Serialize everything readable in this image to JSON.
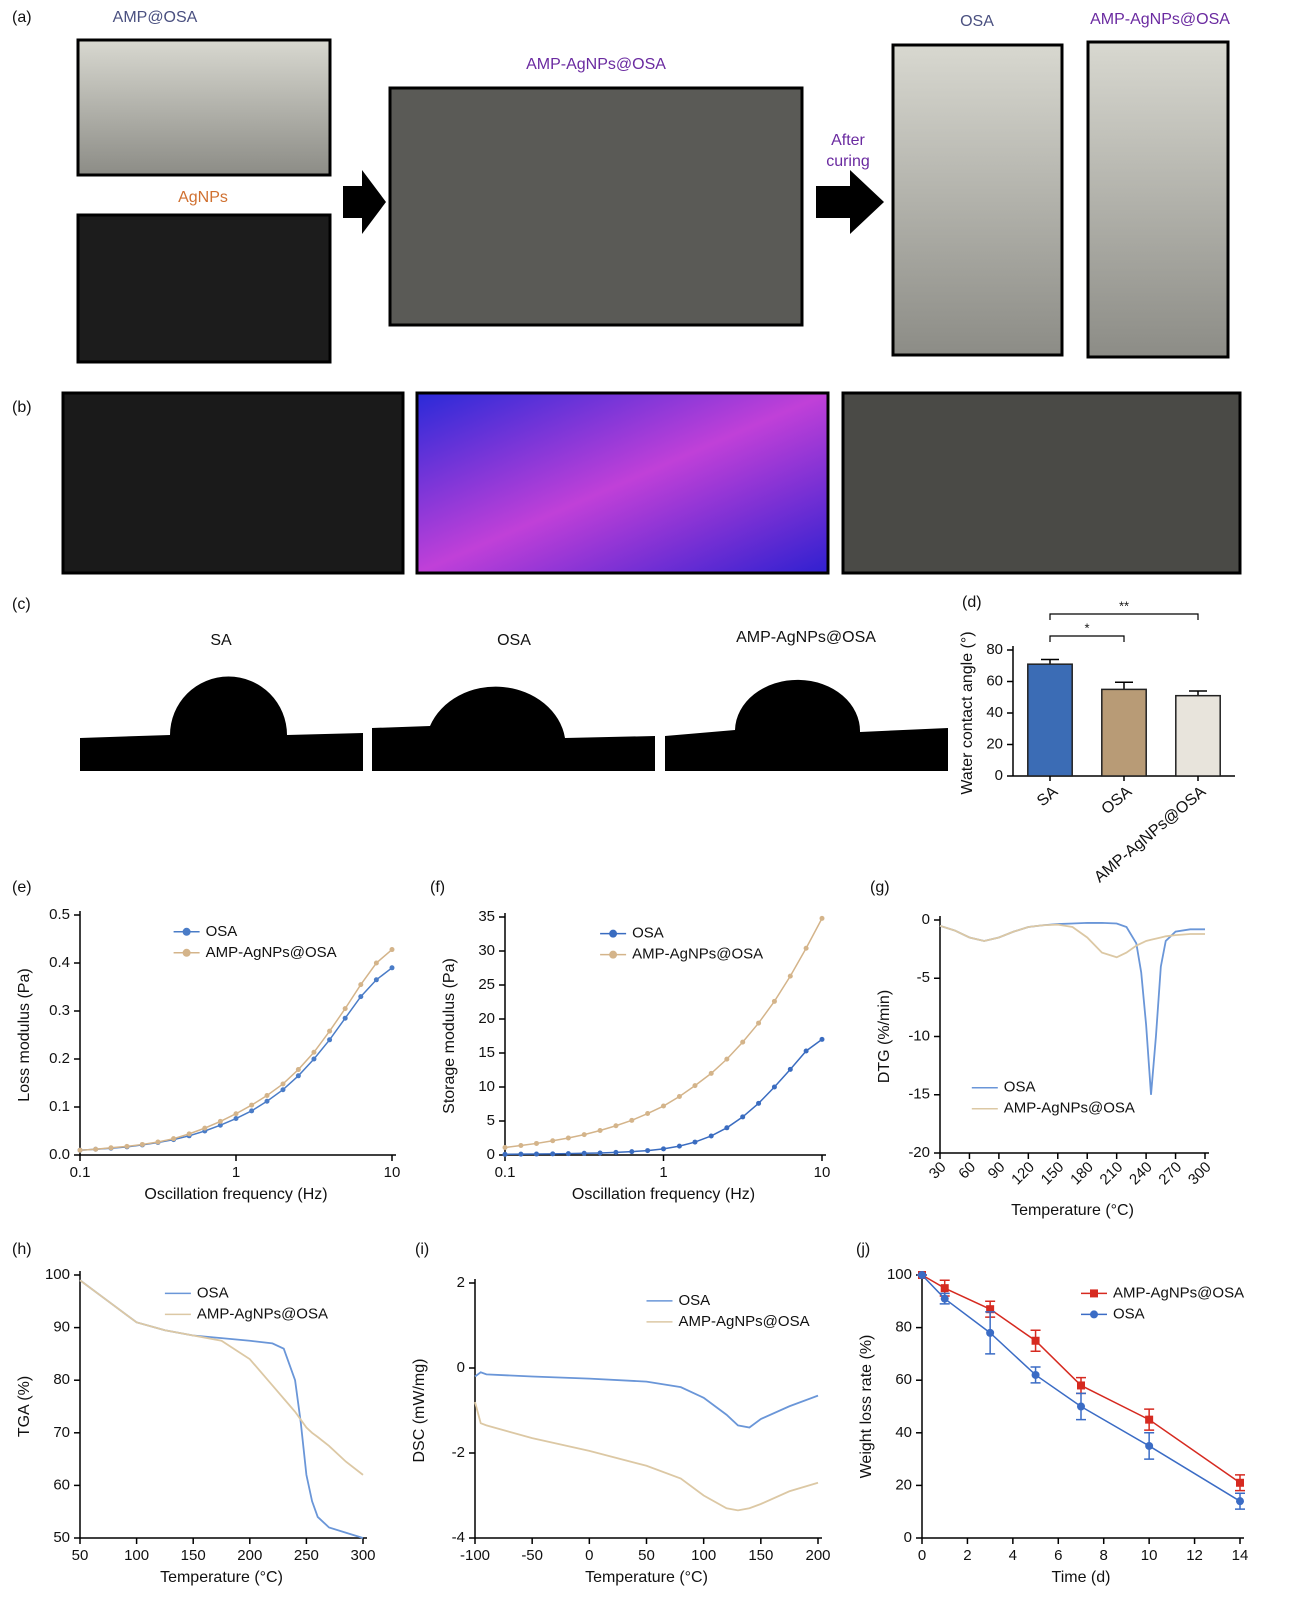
{
  "panel_labels": [
    "(a)",
    "(b)",
    "(c)",
    "(d)",
    "(e)",
    "(f)",
    "(g)",
    "(h)",
    "(i)",
    "(j)"
  ],
  "photo_labels": {
    "amp_osa": "AMP@OSA",
    "agnps": "AgNPs",
    "mixed": "AMP-AgNPs@OSA",
    "after_curing": "After curing",
    "osa": "OSA",
    "cured": "AMP-AgNPs@OSA"
  },
  "contact_angle_labels": [
    "SA",
    "OSA",
    "AMP-AgNPs@OSA"
  ],
  "chart_data": [
    {
      "type": "bar",
      "ylabel": "Water contact angle (°)",
      "categories": [
        "SA",
        "OSA",
        "AMP-AgNPs@OSA"
      ],
      "values": [
        71,
        55,
        51
      ],
      "errors": [
        3,
        4.5,
        3
      ],
      "colors": [
        "#3b6cb5",
        "#b89b76",
        "#e8e4dc"
      ],
      "ylim": [
        0,
        80
      ],
      "yticks": [
        0,
        20,
        40,
        60,
        80
      ],
      "annotations": [
        "*",
        "**"
      ]
    },
    {
      "type": "line",
      "xlabel": "Oscillation frequency (Hz)",
      "ylabel": "Loss modulus (Pa)",
      "xscale": "log",
      "legend": "upper center",
      "x": [
        0.1,
        0.126,
        0.158,
        0.2,
        0.251,
        0.316,
        0.398,
        0.501,
        0.631,
        0.794,
        1,
        1.26,
        1.58,
        2,
        2.51,
        3.16,
        3.98,
        5.01,
        6.31,
        7.94,
        10
      ],
      "xlim": [
        0.1,
        10
      ],
      "xticks": [
        0.1,
        1,
        10
      ],
      "ylim": [
        0,
        0.5
      ],
      "yticks": [
        {
          "value": 0,
          "label": "0.0"
        },
        0.1,
        0.2,
        0.3,
        0.4,
        0.5
      ],
      "series": [
        {
          "name": "OSA",
          "color": "#4a7cc7",
          "marker": "circle",
          "values": [
            0.01,
            0.012,
            0.014,
            0.017,
            0.021,
            0.026,
            0.032,
            0.04,
            0.05,
            0.062,
            0.076,
            0.092,
            0.112,
            0.136,
            0.165,
            0.2,
            0.24,
            0.285,
            0.33,
            0.365,
            0.39
          ]
        },
        {
          "name": "AMP-AgNPs@OSA",
          "color": "#d4b48a",
          "marker": "circle",
          "values": [
            0.01,
            0.012,
            0.015,
            0.018,
            0.022,
            0.027,
            0.034,
            0.044,
            0.056,
            0.07,
            0.086,
            0.104,
            0.124,
            0.148,
            0.178,
            0.214,
            0.258,
            0.305,
            0.355,
            0.4,
            0.428
          ]
        }
      ]
    },
    {
      "type": "line",
      "xlabel": "Oscillation frequency (Hz)",
      "ylabel": "Storage modulus (Pa)",
      "xscale": "log",
      "legend": "upper center",
      "x": [
        0.1,
        0.126,
        0.158,
        0.2,
        0.251,
        0.316,
        0.398,
        0.501,
        0.631,
        0.794,
        1,
        1.26,
        1.58,
        2,
        2.51,
        3.16,
        3.98,
        5.01,
        6.31,
        7.94,
        10
      ],
      "xlim": [
        0.1,
        10
      ],
      "xticks": [
        0.1,
        1,
        10
      ],
      "ylim": [
        0,
        35
      ],
      "yticks": [
        0,
        5,
        10,
        15,
        20,
        25,
        30,
        35
      ],
      "series": [
        {
          "name": "OSA",
          "color": "#3a6cc0",
          "marker": "circle",
          "values": [
            0.1,
            0.12,
            0.14,
            0.17,
            0.2,
            0.25,
            0.3,
            0.38,
            0.5,
            0.65,
            0.9,
            1.3,
            1.9,
            2.8,
            4,
            5.6,
            7.6,
            10,
            12.6,
            15.3,
            17
          ]
        },
        {
          "name": "AMP-AgNPs@OSA",
          "color": "#d4b48a",
          "marker": "circle",
          "values": [
            1.1,
            1.4,
            1.7,
            2.1,
            2.5,
            3,
            3.6,
            4.3,
            5.1,
            6.1,
            7.2,
            8.6,
            10.2,
            12,
            14.1,
            16.6,
            19.4,
            22.6,
            26.3,
            30.4,
            34.8
          ]
        }
      ]
    },
    {
      "type": "line",
      "xlabel": "Temperature (°C)",
      "ylabel": "DTG (%/min)",
      "legend": "lower left",
      "x": [
        30,
        45,
        60,
        75,
        90,
        105,
        120,
        135,
        150,
        165,
        180,
        195,
        210,
        220,
        230,
        235,
        240,
        245,
        250,
        255,
        260,
        270,
        285,
        300
      ],
      "xlim": [
        30,
        300
      ],
      "xticks": [
        30,
        60,
        90,
        120,
        150,
        180,
        210,
        240,
        270,
        300
      ],
      "ylim": [
        -20,
        0
      ],
      "yticks": [
        -20,
        -15,
        -10,
        -5,
        0
      ],
      "series": [
        {
          "name": "OSA",
          "color": "#6a96d8",
          "values": [
            -0.5,
            -0.9,
            -1.5,
            -1.8,
            -1.5,
            -1,
            -0.6,
            -0.45,
            -0.35,
            -0.3,
            -0.25,
            -0.25,
            -0.3,
            -0.6,
            -2,
            -4.5,
            -9,
            -15,
            -10,
            -4,
            -1.8,
            -1,
            -0.8,
            -0.8
          ]
        },
        {
          "name": "AMP-AgNPs@OSA",
          "color": "#dcc8a4",
          "values": [
            -0.5,
            -0.9,
            -1.5,
            -1.8,
            -1.5,
            -1,
            -0.6,
            -0.45,
            -0.4,
            -0.6,
            -1.5,
            -2.8,
            -3.2,
            -2.8,
            -2.2,
            -2,
            -1.8,
            -1.7,
            -1.6,
            -1.5,
            -1.4,
            -1.3,
            -1.2,
            -1.2
          ]
        }
      ]
    },
    {
      "type": "line",
      "xlabel": "Temperature (°C)",
      "ylabel": "TGA (%)",
      "legend": "upper center",
      "x": [
        50,
        75,
        100,
        125,
        150,
        175,
        200,
        220,
        230,
        240,
        245,
        250,
        255,
        260,
        270,
        285,
        300
      ],
      "xlim": [
        50,
        300
      ],
      "xticks": [
        50,
        100,
        150,
        200,
        250,
        300
      ],
      "ylim": [
        50,
        100
      ],
      "yticks": [
        50,
        60,
        70,
        80,
        90,
        100
      ],
      "series": [
        {
          "name": "OSA",
          "color": "#6a96d8",
          "values": [
            99,
            95,
            91,
            89.5,
            88.5,
            88,
            87.5,
            87,
            86,
            80,
            72,
            62,
            57,
            54,
            52,
            51,
            50
          ]
        },
        {
          "name": "AMP-AgNPs@OSA",
          "color": "#dcc8a4",
          "values": [
            99,
            95,
            91,
            89.5,
            88.5,
            87.5,
            84,
            79,
            76.5,
            74,
            72.5,
            71,
            70,
            69.2,
            67.5,
            64.5,
            62
          ]
        }
      ]
    },
    {
      "type": "line",
      "xlabel": "Temperature (°C)",
      "ylabel": "DSC (mW/mg)",
      "legend": "upper right",
      "x": [
        -100,
        -95,
        -90,
        -50,
        0,
        50,
        80,
        100,
        120,
        130,
        140,
        150,
        175,
        200
      ],
      "xlim": [
        -100,
        200
      ],
      "xticks": [
        -100,
        -50,
        0,
        50,
        100,
        150,
        200
      ],
      "ylim": [
        -4,
        2
      ],
      "yticks": [
        -4,
        -2,
        0,
        2
      ],
      "series": [
        {
          "name": "OSA",
          "color": "#6a96d8",
          "values": [
            -0.2,
            -0.1,
            -0.15,
            -0.2,
            -0.25,
            -0.32,
            -0.45,
            -0.7,
            -1.1,
            -1.35,
            -1.4,
            -1.2,
            -0.9,
            -0.65
          ]
        },
        {
          "name": "AMP-AgNPs@OSA",
          "color": "#dcc8a4",
          "values": [
            -0.8,
            -1.3,
            -1.35,
            -1.65,
            -1.95,
            -2.3,
            -2.6,
            -3,
            -3.3,
            -3.35,
            -3.3,
            -3.2,
            -2.9,
            -2.7
          ]
        }
      ]
    },
    {
      "type": "line",
      "xlabel": "Time (d)",
      "ylabel": "Weight loss rate (%)",
      "legend": "upper right",
      "x": [
        0,
        1,
        3,
        5,
        7,
        10,
        14
      ],
      "xlim": [
        0,
        14
      ],
      "xticks": [
        0,
        2,
        4,
        6,
        8,
        10,
        12,
        14
      ],
      "ylim": [
        0,
        100
      ],
      "yticks": [
        0,
        20,
        40,
        60,
        80,
        100
      ],
      "series": [
        {
          "name": "AMP-AgNPs@OSA",
          "color": "#d62a20",
          "marker": "square",
          "values": [
            100,
            95,
            87,
            75,
            58,
            45,
            21
          ],
          "errors": [
            0,
            3,
            3,
            4,
            3,
            4,
            3
          ]
        },
        {
          "name": "OSA",
          "color": "#3b6cc5",
          "marker": "circle",
          "values": [
            100,
            91,
            78,
            62,
            50,
            35,
            14
          ],
          "errors": [
            0,
            2,
            8,
            3,
            5,
            5,
            3
          ]
        }
      ]
    }
  ]
}
